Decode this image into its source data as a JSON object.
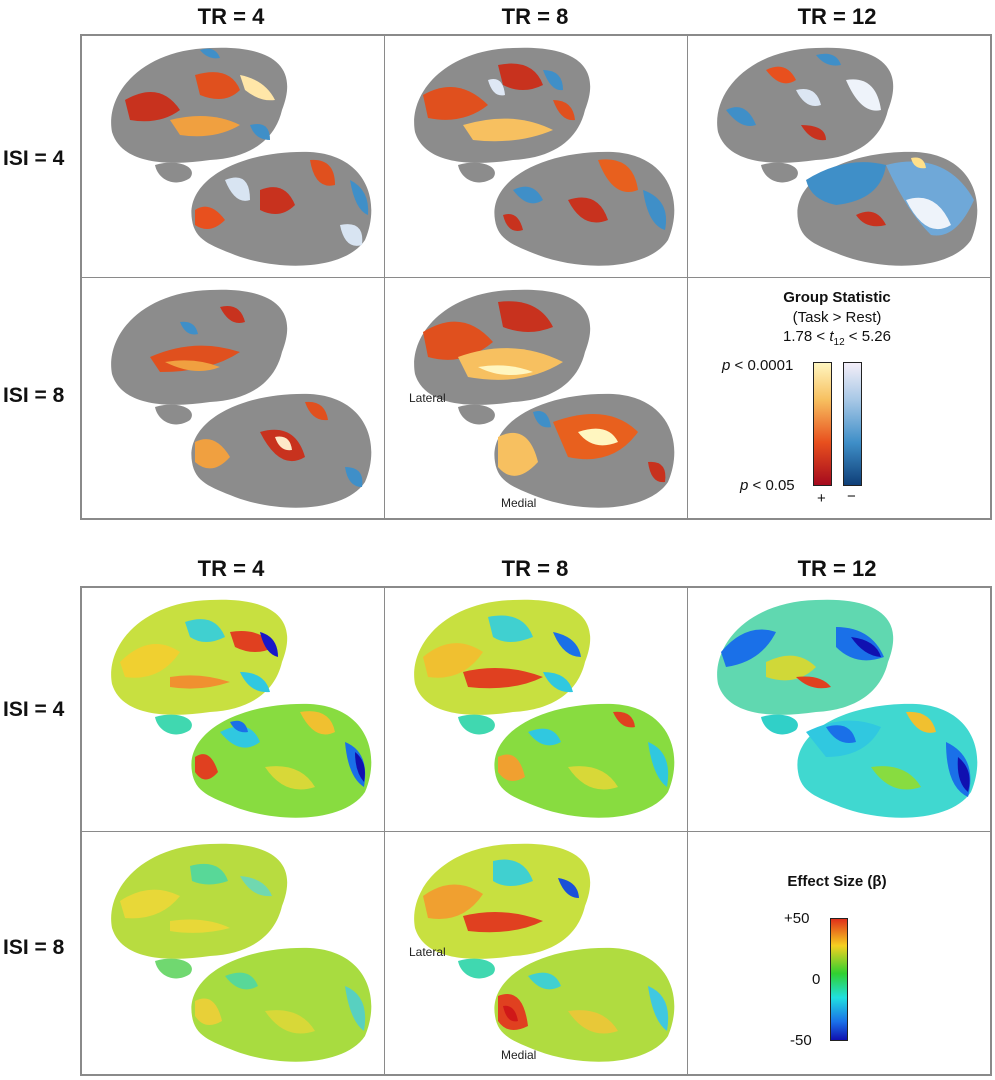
{
  "stat_panel": {
    "columns": [
      "TR = 4",
      "TR = 8",
      "TR = 12"
    ],
    "rows": [
      "ISI = 4",
      "ISI = 8"
    ],
    "view_labels": {
      "lateral": "Lateral",
      "medial": "Medial"
    },
    "legend": {
      "title": "Group Statistic",
      "subtitle": "(Task > Rest)",
      "range_prefix": "1.78 < ",
      "range_var": "t",
      "range_sub": "12",
      "range_suffix": " < 5.26",
      "p_high_italic": "p",
      "p_high_rest": " < 0.0001",
      "p_low_italic": "p",
      "p_low_rest": " < 0.05",
      "plus": "+",
      "minus": "−",
      "colors": {
        "pos_low": "#a50a1e",
        "pos_mid": "#e8501e",
        "pos_high": "#fff6c0",
        "neg_low": "#0f3f78",
        "neg_mid": "#3f8fc8",
        "neg_high": "#f3eef8",
        "cortex": "#8c8c8c"
      }
    }
  },
  "beta_panel": {
    "columns": [
      "TR = 4",
      "TR = 8",
      "TR = 12"
    ],
    "rows": [
      "ISI = 4",
      "ISI = 8"
    ],
    "view_labels": {
      "lateral": "Lateral",
      "medial": "Medial"
    },
    "legend": {
      "title": "Effect Size (β)",
      "max": "+50",
      "mid": "0",
      "min": "-50",
      "colors": [
        "#e0301a",
        "#f5d020",
        "#30d030",
        "#20e0e0",
        "#1a70e8",
        "#1010b0"
      ]
    }
  }
}
